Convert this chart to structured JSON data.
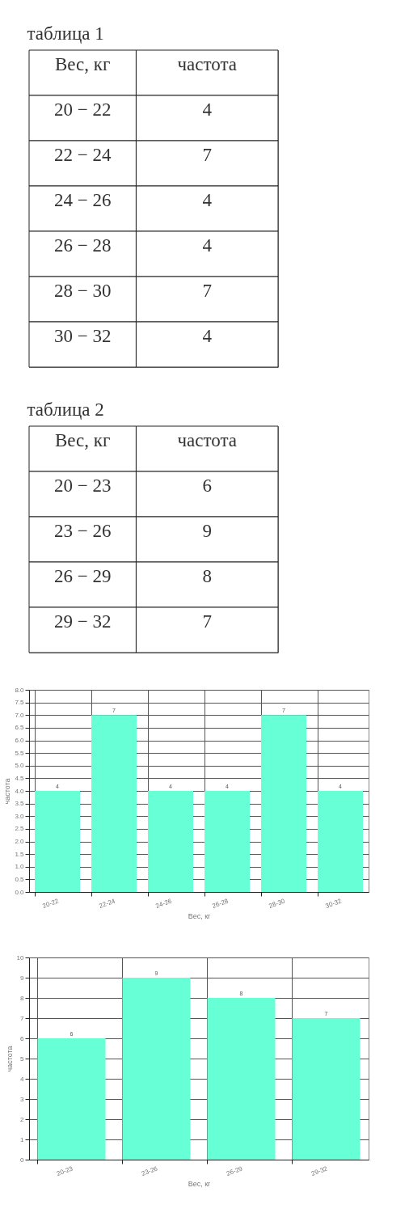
{
  "chart_data": [
    {
      "type": "other",
      "title": "таблица 1",
      "xlabel": "Вес, кг",
      "ylabel": "частота",
      "categories": [
        "20 − 22",
        "22 − 24",
        "24 − 26",
        "26 − 28",
        "28 − 30",
        "30 − 32"
      ],
      "values": [
        4,
        7,
        4,
        4,
        7,
        4
      ],
      "data_labels": true
    },
    {
      "type": "other",
      "title": "таблица 2",
      "xlabel": "Вес, кг",
      "ylabel": "частота",
      "categories": [
        "20 − 23",
        "23 − 26",
        "26 − 29",
        "29 − 32"
      ],
      "values": [
        6,
        9,
        8,
        7
      ],
      "data_labels": true
    },
    {
      "type": "bar",
      "xlabel": "Вес, кг",
      "ylabel": "частота",
      "categories": [
        "20-22",
        "22-24",
        "24-26",
        "26-28",
        "28-30",
        "30-32"
      ],
      "values": [
        4,
        7,
        4,
        4,
        7,
        4
      ],
      "color": "#66ffd6",
      "ylim": [
        0,
        8
      ],
      "yticks": [
        {
          "value": 0,
          "label": "0.0"
        },
        {
          "value": 0.5,
          "label": "0.5"
        },
        {
          "value": 1,
          "label": "1.0"
        },
        {
          "value": 1.5,
          "label": "1.5"
        },
        {
          "value": 2,
          "label": "2.0"
        },
        {
          "value": 2.5,
          "label": "2.5"
        },
        {
          "value": 3,
          "label": "3.0"
        },
        {
          "value": 3.5,
          "label": "3.5"
        },
        {
          "value": 4,
          "label": "4.0"
        },
        {
          "value": 4.5,
          "label": "4.5"
        },
        {
          "value": 5,
          "label": "5.0"
        },
        {
          "value": 5.5,
          "label": "5.5"
        },
        {
          "value": 6,
          "label": "6.0"
        },
        {
          "value": 6.5,
          "label": "6.5"
        },
        {
          "value": 7,
          "label": "7.0"
        },
        {
          "value": 7.5,
          "label": "7.5"
        },
        {
          "value": 8,
          "label": "8.0"
        }
      ],
      "grid": true,
      "data_labels": true
    },
    {
      "type": "bar",
      "xlabel": "Вес, кг",
      "ylabel": "частота",
      "categories": [
        "20-23",
        "23-26",
        "26-29",
        "29-32"
      ],
      "values": [
        6,
        9,
        8,
        7
      ],
      "color": "#66ffd6",
      "ylim": [
        0,
        10
      ],
      "yticks": [
        0,
        1,
        2,
        3,
        4,
        5,
        6,
        7,
        8,
        9,
        10
      ],
      "grid": true,
      "data_labels": true
    }
  ]
}
